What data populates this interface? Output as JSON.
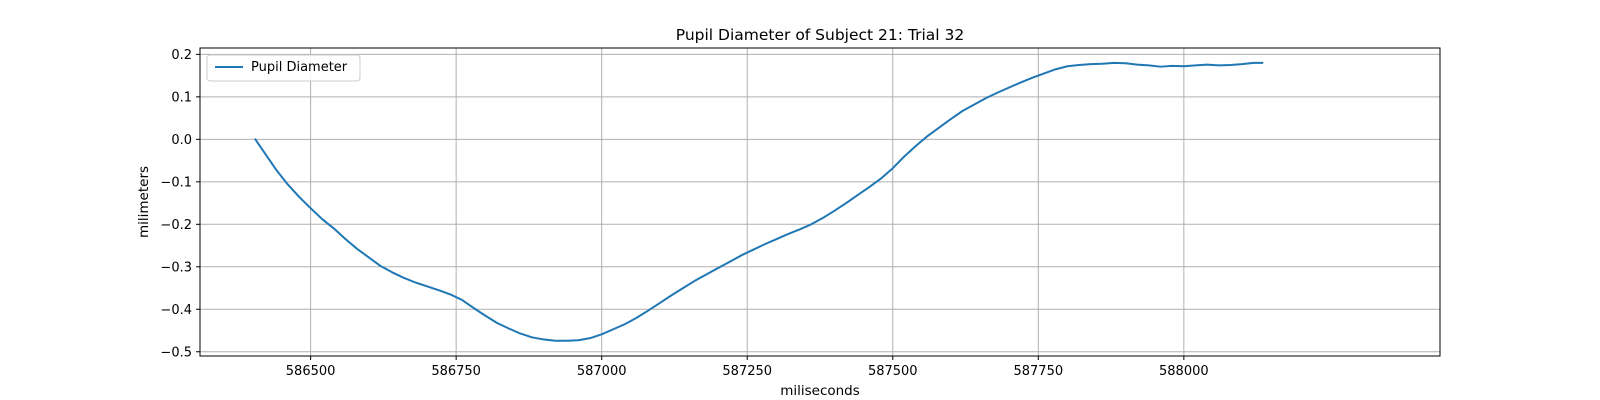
{
  "chart_data": {
    "type": "line",
    "title": "Pupil Diameter of Subject 21: Trial 32",
    "xlabel": "miliseconds",
    "ylabel": "milimeters",
    "xlim": [
      586310,
      588440
    ],
    "ylim": [
      -0.51,
      0.215
    ],
    "xticks": [
      586500,
      586750,
      587000,
      587250,
      587500,
      587750,
      588000
    ],
    "yticks": [
      0.2,
      0.1,
      0.0,
      -0.1,
      -0.2,
      -0.3,
      -0.4,
      -0.5
    ],
    "xtick_labels": [
      "586500",
      "586750",
      "587000",
      "587250",
      "587500",
      "587750",
      "588000"
    ],
    "ytick_labels": [
      "0.2",
      "0.1",
      "0.0",
      "−0.1",
      "−0.2",
      "−0.3",
      "−0.4",
      "−0.5"
    ],
    "grid": true,
    "legend_position": "top-left",
    "series": [
      {
        "name": "Pupil Diameter",
        "color": "#1f77b4",
        "x": [
          586405,
          586420,
          586440,
          586460,
          586480,
          586500,
          586520,
          586540,
          586560,
          586580,
          586600,
          586620,
          586640,
          586660,
          586680,
          586700,
          586720,
          586740,
          586760,
          586780,
          586800,
          586820,
          586840,
          586860,
          586880,
          586900,
          586920,
          586940,
          586960,
          586980,
          587000,
          587020,
          587040,
          587060,
          587080,
          587100,
          587120,
          587140,
          587160,
          587180,
          587200,
          587220,
          587240,
          587260,
          587280,
          587300,
          587320,
          587340,
          587360,
          587380,
          587400,
          587420,
          587440,
          587460,
          587480,
          587500,
          587520,
          587540,
          587560,
          587580,
          587600,
          587620,
          587640,
          587660,
          587680,
          587700,
          587720,
          587740,
          587760,
          587780,
          587800,
          587820,
          587840,
          587860,
          587880,
          587900,
          587920,
          587940,
          587960,
          587980,
          588000,
          588020,
          588040,
          588060,
          588080,
          588100,
          588120,
          588135
        ],
        "y": [
          0.0,
          -0.03,
          -0.07,
          -0.105,
          -0.135,
          -0.162,
          -0.188,
          -0.21,
          -0.235,
          -0.258,
          -0.278,
          -0.298,
          -0.313,
          -0.326,
          -0.337,
          -0.346,
          -0.355,
          -0.365,
          -0.378,
          -0.397,
          -0.415,
          -0.432,
          -0.445,
          -0.457,
          -0.466,
          -0.471,
          -0.474,
          -0.474,
          -0.473,
          -0.468,
          -0.459,
          -0.447,
          -0.435,
          -0.42,
          -0.403,
          -0.385,
          -0.367,
          -0.35,
          -0.333,
          -0.318,
          -0.303,
          -0.288,
          -0.273,
          -0.26,
          -0.247,
          -0.235,
          -0.223,
          -0.212,
          -0.2,
          -0.185,
          -0.168,
          -0.15,
          -0.131,
          -0.112,
          -0.092,
          -0.068,
          -0.04,
          -0.015,
          0.008,
          0.028,
          0.048,
          0.067,
          0.082,
          0.097,
          0.11,
          0.122,
          0.134,
          0.145,
          0.155,
          0.165,
          0.172,
          0.175,
          0.177,
          0.178,
          0.18,
          0.179,
          0.176,
          0.174,
          0.171,
          0.173,
          0.172,
          0.174,
          0.176,
          0.174,
          0.175,
          0.177,
          0.18,
          0.18
        ]
      }
    ]
  }
}
